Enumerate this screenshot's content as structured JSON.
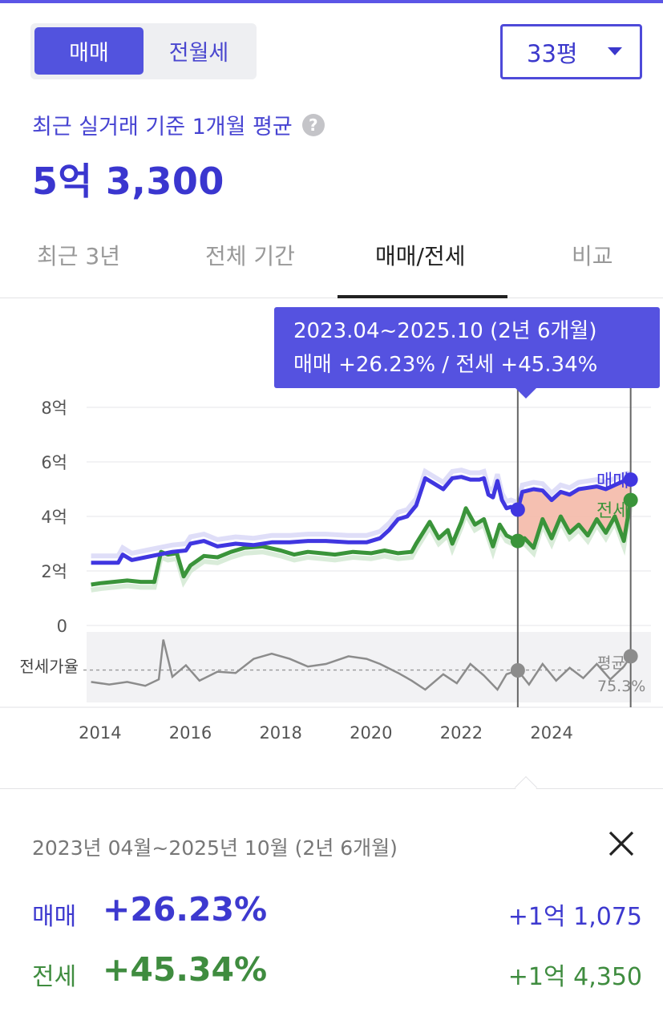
{
  "header": {
    "trade_tabs": [
      {
        "label": "매매",
        "active": true
      },
      {
        "label": "전월세",
        "active": false
      }
    ],
    "size_select": {
      "value": "33평"
    }
  },
  "summary": {
    "label": "최근 실거래 기준 1개월 평균",
    "price": "5억 3,300"
  },
  "period_tabs": [
    {
      "label": "최근 3년",
      "active": false
    },
    {
      "label": "전체 기간",
      "active": false
    },
    {
      "label": "매매/전세",
      "active": true
    },
    {
      "label": "비교",
      "active": false
    }
  ],
  "tooltip": {
    "range": "2023.04~2025.10 (2년 6개월)",
    "change": "매매 +26.23%  /  전세 +45.34%"
  },
  "chart_data": {
    "type": "line",
    "y_unit": "억",
    "ylim": [
      0,
      8
    ],
    "yticks": [
      {
        "value": 8,
        "label": "8억"
      },
      {
        "value": 6,
        "label": "6억"
      },
      {
        "value": 4,
        "label": "4억"
      },
      {
        "value": 2,
        "label": "2억"
      },
      {
        "value": 0,
        "label": "0"
      }
    ],
    "xlim": [
      2013.7,
      2026.2
    ],
    "xticks": [
      2014,
      2016,
      2018,
      2020,
      2022,
      2024
    ],
    "selection": {
      "start": 2023.25,
      "end": 2025.75
    },
    "series": [
      {
        "name": "매매",
        "color": "#4036e0",
        "points": [
          [
            2013.8,
            2.3
          ],
          [
            2014.2,
            2.3
          ],
          [
            2014.4,
            2.3
          ],
          [
            2014.5,
            2.6
          ],
          [
            2014.7,
            2.4
          ],
          [
            2015,
            2.5
          ],
          [
            2015.3,
            2.6
          ],
          [
            2015.6,
            2.7
          ],
          [
            2015.9,
            2.75
          ],
          [
            2016,
            3.0
          ],
          [
            2016.3,
            3.1
          ],
          [
            2016.6,
            2.9
          ],
          [
            2017,
            3.0
          ],
          [
            2017.4,
            2.95
          ],
          [
            2017.8,
            3.05
          ],
          [
            2018.2,
            3.05
          ],
          [
            2018.6,
            3.1
          ],
          [
            2019,
            3.1
          ],
          [
            2019.5,
            3.05
          ],
          [
            2019.9,
            3.05
          ],
          [
            2020.2,
            3.2
          ],
          [
            2020.4,
            3.5
          ],
          [
            2020.6,
            3.9
          ],
          [
            2020.8,
            4.0
          ],
          [
            2021,
            4.4
          ],
          [
            2021.2,
            5.4
          ],
          [
            2021.4,
            5.2
          ],
          [
            2021.6,
            5.0
          ],
          [
            2021.8,
            5.4
          ],
          [
            2022,
            5.45
          ],
          [
            2022.2,
            5.35
          ],
          [
            2022.4,
            5.35
          ],
          [
            2022.5,
            5.4
          ],
          [
            2022.6,
            4.8
          ],
          [
            2022.7,
            4.7
          ],
          [
            2022.8,
            5.3
          ],
          [
            2022.9,
            4.6
          ],
          [
            2023,
            4.3
          ],
          [
            2023.1,
            4.35
          ],
          [
            2023.25,
            4.25
          ],
          [
            2023.35,
            4.9
          ],
          [
            2023.6,
            5.0
          ],
          [
            2023.8,
            4.95
          ],
          [
            2024,
            4.6
          ],
          [
            2024.2,
            4.9
          ],
          [
            2024.4,
            4.8
          ],
          [
            2024.6,
            5.0
          ],
          [
            2024.8,
            5.05
          ],
          [
            2025,
            5.1
          ],
          [
            2025.2,
            5.0
          ],
          [
            2025.4,
            5.15
          ],
          [
            2025.6,
            5.3
          ],
          [
            2025.75,
            5.35
          ]
        ],
        "end_label": "매매"
      },
      {
        "name": "전세",
        "color": "#3a943a",
        "points": [
          [
            2013.8,
            1.5
          ],
          [
            2014,
            1.55
          ],
          [
            2014.3,
            1.6
          ],
          [
            2014.6,
            1.65
          ],
          [
            2014.9,
            1.6
          ],
          [
            2015.2,
            1.6
          ],
          [
            2015.35,
            2.7
          ],
          [
            2015.5,
            2.6
          ],
          [
            2015.7,
            2.65
          ],
          [
            2015.85,
            1.8
          ],
          [
            2016,
            2.2
          ],
          [
            2016.3,
            2.55
          ],
          [
            2016.6,
            2.5
          ],
          [
            2016.9,
            2.7
          ],
          [
            2017.2,
            2.85
          ],
          [
            2017.6,
            2.9
          ],
          [
            2018,
            2.75
          ],
          [
            2018.3,
            2.6
          ],
          [
            2018.6,
            2.7
          ],
          [
            2018.9,
            2.65
          ],
          [
            2019.2,
            2.6
          ],
          [
            2019.6,
            2.7
          ],
          [
            2020,
            2.65
          ],
          [
            2020.3,
            2.75
          ],
          [
            2020.6,
            2.65
          ],
          [
            2020.9,
            2.7
          ],
          [
            2021,
            3.0
          ],
          [
            2021.3,
            3.8
          ],
          [
            2021.5,
            3.2
          ],
          [
            2021.7,
            3.5
          ],
          [
            2021.8,
            3.0
          ],
          [
            2022,
            3.8
          ],
          [
            2022.1,
            4.3
          ],
          [
            2022.3,
            3.7
          ],
          [
            2022.5,
            3.9
          ],
          [
            2022.7,
            2.9
          ],
          [
            2022.85,
            3.7
          ],
          [
            2023,
            3.3
          ],
          [
            2023.25,
            3.1
          ],
          [
            2023.4,
            3.2
          ],
          [
            2023.6,
            2.85
          ],
          [
            2023.8,
            3.9
          ],
          [
            2024,
            3.2
          ],
          [
            2024.2,
            4.0
          ],
          [
            2024.4,
            3.4
          ],
          [
            2024.6,
            3.7
          ],
          [
            2024.8,
            3.3
          ],
          [
            2025,
            3.9
          ],
          [
            2025.2,
            3.4
          ],
          [
            2025.4,
            4.0
          ],
          [
            2025.6,
            3.1
          ],
          [
            2025.75,
            4.6
          ]
        ],
        "end_label": "전세"
      }
    ],
    "jeonse_ratio": {
      "label": "전세가율",
      "avg_label": "평균",
      "avg_value": "75.3%",
      "points": [
        [
          2013.8,
          66
        ],
        [
          2014.2,
          64
        ],
        [
          2014.6,
          66
        ],
        [
          2015,
          63
        ],
        [
          2015.3,
          68
        ],
        [
          2015.4,
          99
        ],
        [
          2015.6,
          70
        ],
        [
          2015.9,
          79
        ],
        [
          2016.2,
          67
        ],
        [
          2016.6,
          74
        ],
        [
          2017,
          73
        ],
        [
          2017.4,
          84
        ],
        [
          2017.8,
          88
        ],
        [
          2018.2,
          84
        ],
        [
          2018.6,
          78
        ],
        [
          2019,
          80
        ],
        [
          2019.5,
          86
        ],
        [
          2019.9,
          84
        ],
        [
          2020.2,
          80
        ],
        [
          2020.6,
          73
        ],
        [
          2020.9,
          67
        ],
        [
          2021.2,
          60
        ],
        [
          2021.6,
          72
        ],
        [
          2021.9,
          65
        ],
        [
          2022.2,
          80
        ],
        [
          2022.5,
          71
        ],
        [
          2022.8,
          60
        ],
        [
          2023,
          72
        ],
        [
          2023.25,
          75
        ],
        [
          2023.5,
          64
        ],
        [
          2023.8,
          80
        ],
        [
          2024.1,
          67
        ],
        [
          2024.4,
          77
        ],
        [
          2024.7,
          69
        ],
        [
          2025,
          80
        ],
        [
          2025.3,
          68
        ],
        [
          2025.6,
          78
        ],
        [
          2025.75,
          86
        ]
      ]
    }
  },
  "detail": {
    "period": "2023년 04월~2025년 10월 (2년 6개월)",
    "sale": {
      "label": "매매",
      "pct": "+26.23%",
      "amount": "+1억 1,075"
    },
    "rent": {
      "label": "전세",
      "pct": "+45.34%",
      "amount": "+1억 4,350"
    }
  }
}
